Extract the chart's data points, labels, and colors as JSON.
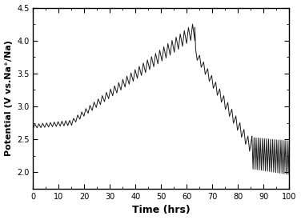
{
  "title": "",
  "xlabel": "Time (hrs)",
  "ylabel": "Potential (V vs.Na⁺/Na)",
  "xlim": [
    0,
    100
  ],
  "ylim": [
    1.75,
    4.5
  ],
  "xticks": [
    0,
    10,
    20,
    30,
    40,
    50,
    60,
    70,
    80,
    90,
    100
  ],
  "yticks": [
    2.0,
    2.5,
    3.0,
    3.5,
    4.0,
    4.5
  ],
  "line_color": "#1a1a1a",
  "line_width": 0.7,
  "background_color": "#ffffff",
  "charge_end_time": 63,
  "discharge_transition_time": 65,
  "total_time": 100
}
